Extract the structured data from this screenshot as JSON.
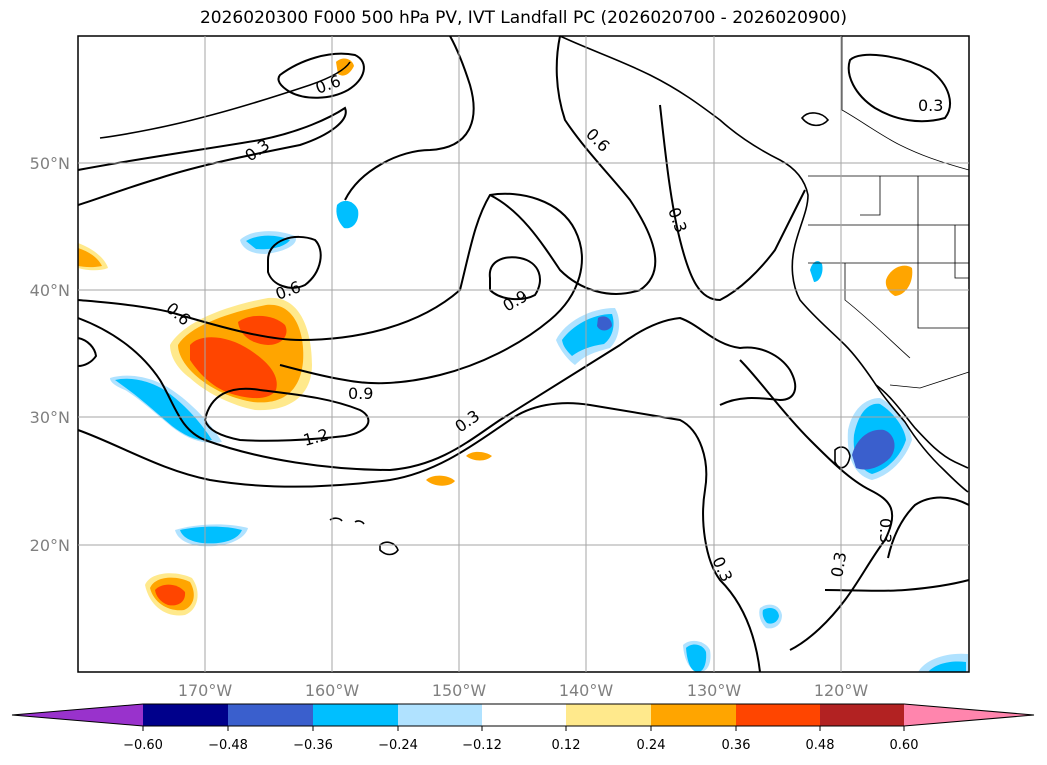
{
  "title": "2026020300 F000 500 hPa PV, IVT Landfall PC (2026020700 - 2026020900)",
  "map": {
    "lat_ticks": [
      "50°N",
      "40°N",
      "30°N",
      "20°N"
    ],
    "lon_ticks": [
      "170°W",
      "160°W",
      "150°W",
      "140°W",
      "130°W",
      "120°W"
    ],
    "contour_labels": [
      "0.6",
      "0.3",
      "0.3",
      "0.6",
      "0.3",
      "0.6",
      "0.6",
      "0.9",
      "0.9",
      "1.2",
      "0.3",
      "0.3",
      "0.3",
      "0.3"
    ]
  },
  "colorbar": {
    "tick_labels": [
      "−0.60",
      "−0.48",
      "−0.36",
      "−0.24",
      "−0.12",
      "0.12",
      "0.24",
      "0.36",
      "0.48",
      "0.60"
    ],
    "colors": [
      "#9932cc",
      "#00008b",
      "#3a5fcd",
      "#00bfff",
      "#b0e2ff",
      "#ffffff",
      "#ffe98c",
      "#ffa500",
      "#ff4500",
      "#b22222",
      "#ff85ad"
    ]
  }
}
